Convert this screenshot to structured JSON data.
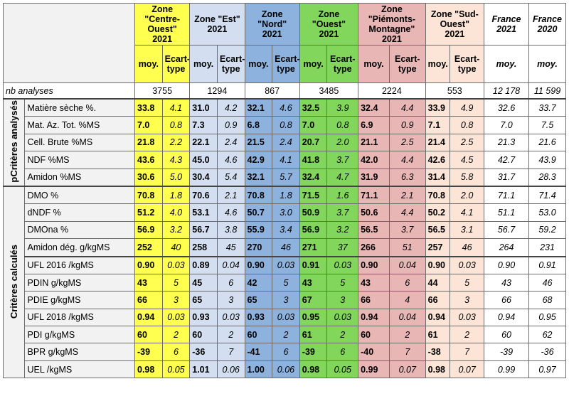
{
  "header": {
    "zones": [
      {
        "label": "Zone \"Centre-Ouest\" 2021",
        "lines": [
          "Zone",
          "\"Centre-",
          "Ouest\"",
          "2021"
        ]
      },
      {
        "label": "Zone \"Est\" 2021",
        "lines": [
          "Zone \"Est\"",
          "2021"
        ]
      },
      {
        "label": "Zone \"Nord\" 2021",
        "lines": [
          "Zone",
          "\"Nord\"",
          "2021"
        ]
      },
      {
        "label": "Zone \"Ouest\" 2021",
        "lines": [
          "Zone",
          "\"Ouest\"",
          "2021"
        ]
      },
      {
        "label": "Zone \"Piémonts-Montagne\" 2021",
        "lines": [
          "Zone",
          "\"Piémonts-",
          "Montagne\"",
          "2021"
        ]
      },
      {
        "label": "Zone \"Sud-Ouest\" 2021",
        "lines": [
          "Zone \"Sud-",
          "Ouest\"",
          "2021"
        ]
      }
    ],
    "france": [
      {
        "lines": [
          "France",
          "2021"
        ]
      },
      {
        "lines": [
          "France",
          "2020"
        ]
      }
    ],
    "moy_label": "moy.",
    "ecart_lines": [
      "Ecart-",
      "type"
    ],
    "france_moy_label": "moy."
  },
  "nb_analyses": {
    "label": "nb analyses",
    "values": [
      "3755",
      "1294",
      "867",
      "3485",
      "2224",
      "553"
    ],
    "france": [
      "12 178",
      "11 599"
    ]
  },
  "groups": [
    {
      "label": "pCritères analysés",
      "rows": [
        {
          "label": "Matière sèche %.",
          "values": [
            [
              "33.8",
              "4.1"
            ],
            [
              "31.0",
              "4.2"
            ],
            [
              "32.1",
              "4.6"
            ],
            [
              "32.5",
              "3.9"
            ],
            [
              "32.4",
              "4.4"
            ],
            [
              "33.9",
              "4.9"
            ]
          ],
          "france": [
            "32.6",
            "33.7"
          ]
        },
        {
          "label": "Mat. Az. Tot. %MS",
          "values": [
            [
              "7.0",
              "0.8"
            ],
            [
              "7.3",
              "0.9"
            ],
            [
              "6.8",
              "0.8"
            ],
            [
              "7.0",
              "0.8"
            ],
            [
              "6.9",
              "0.9"
            ],
            [
              "7.1",
              "0.8"
            ]
          ],
          "france": [
            "7.0",
            "7.5"
          ]
        },
        {
          "label": "Cell. Brute %MS",
          "values": [
            [
              "21.8",
              "2.2"
            ],
            [
              "22.1",
              "2.4"
            ],
            [
              "21.5",
              "2.4"
            ],
            [
              "20.7",
              "2.0"
            ],
            [
              "21.1",
              "2.5"
            ],
            [
              "21.4",
              "2.5"
            ]
          ],
          "france": [
            "21.3",
            "21.6"
          ]
        },
        {
          "label": "NDF %MS",
          "values": [
            [
              "43.6",
              "4.3"
            ],
            [
              "45.0",
              "4.6"
            ],
            [
              "42.9",
              "4.1"
            ],
            [
              "41.8",
              "3.7"
            ],
            [
              "42.0",
              "4.4"
            ],
            [
              "42.6",
              "4.5"
            ]
          ],
          "france": [
            "42.7",
            "43.9"
          ]
        },
        {
          "label": "Amidon %MS",
          "values": [
            [
              "30.6",
              "5.0"
            ],
            [
              "30.4",
              "5.4"
            ],
            [
              "32.1",
              "5.7"
            ],
            [
              "32.4",
              "4.7"
            ],
            [
              "31.9",
              "6.3"
            ],
            [
              "31.4",
              "5.8"
            ]
          ],
          "france": [
            "31.7",
            "28.3"
          ]
        }
      ]
    },
    {
      "label": "Critères calculés",
      "rows": [
        {
          "label": "DMO %",
          "values": [
            [
              "70.8",
              "1.8"
            ],
            [
              "70.6",
              "2.1"
            ],
            [
              "70.8",
              "1.8"
            ],
            [
              "71.5",
              "1.6"
            ],
            [
              "71.1",
              "2.1"
            ],
            [
              "70.8",
              "2.0"
            ]
          ],
          "france": [
            "71.1",
            "71.4"
          ]
        },
        {
          "label": "dNDF %",
          "values": [
            [
              "51.2",
              "4.0"
            ],
            [
              "53.1",
              "4.6"
            ],
            [
              "50.7",
              "3.0"
            ],
            [
              "50.9",
              "3.7"
            ],
            [
              "50.6",
              "4.4"
            ],
            [
              "50.2",
              "4.1"
            ]
          ],
          "france": [
            "51.1",
            "53.0"
          ]
        },
        {
          "label": "DMOna %",
          "values": [
            [
              "56.9",
              "3.2"
            ],
            [
              "56.7",
              "3.8"
            ],
            [
              "55.9",
              "3.4"
            ],
            [
              "56.9",
              "3.2"
            ],
            [
              "56.5",
              "3.7"
            ],
            [
              "56.5",
              "3.1"
            ]
          ],
          "france": [
            "56.7",
            "59.2"
          ]
        },
        {
          "label": "Amidon dég. g/kgMS",
          "values": [
            [
              "252",
              "40"
            ],
            [
              "258",
              "45"
            ],
            [
              "270",
              "46"
            ],
            [
              "271",
              "37"
            ],
            [
              "266",
              "51"
            ],
            [
              "257",
              "46"
            ]
          ],
          "france": [
            "264",
            "231"
          ]
        },
        {
          "label": "UFL 2016 /kgMS",
          "values": [
            [
              "0.90",
              "0.03"
            ],
            [
              "0.89",
              "0.04"
            ],
            [
              "0.90",
              "0.03"
            ],
            [
              "0.91",
              "0.03"
            ],
            [
              "0.90",
              "0.04"
            ],
            [
              "0.90",
              "0.03"
            ]
          ],
          "france": [
            "0.90",
            "0.91"
          ],
          "sep": true
        },
        {
          "label": "PDIN g/kgMS",
          "values": [
            [
              "43",
              "5"
            ],
            [
              "45",
              "6"
            ],
            [
              "42",
              "5"
            ],
            [
              "43",
              "5"
            ],
            [
              "43",
              "6"
            ],
            [
              "44",
              "5"
            ]
          ],
          "france": [
            "43",
            "46"
          ]
        },
        {
          "label": "PDIE g/kgMS",
          "values": [
            [
              "66",
              "3"
            ],
            [
              "65",
              "3"
            ],
            [
              "65",
              "3"
            ],
            [
              "67",
              "3"
            ],
            [
              "66",
              "4"
            ],
            [
              "66",
              "3"
            ]
          ],
          "france": [
            "66",
            "68"
          ]
        },
        {
          "label": "UFL 2018 /kgMS",
          "values": [
            [
              "0.94",
              "0.03"
            ],
            [
              "0.93",
              "0.03"
            ],
            [
              "0.93",
              "0.03"
            ],
            [
              "0.95",
              "0.03"
            ],
            [
              "0.94",
              "0.04"
            ],
            [
              "0.94",
              "0.03"
            ]
          ],
          "france": [
            "0.94",
            "0.95"
          ]
        },
        {
          "label": "PDI g/kgMS",
          "values": [
            [
              "60",
              "2"
            ],
            [
              "60",
              "2"
            ],
            [
              "60",
              "2"
            ],
            [
              "61",
              "2"
            ],
            [
              "60",
              "2"
            ],
            [
              "61",
              "2"
            ]
          ],
          "france": [
            "60",
            "62"
          ]
        },
        {
          "label": "BPR g/kgMS",
          "values": [
            [
              "-39",
              "6"
            ],
            [
              "-36",
              "7"
            ],
            [
              "-41",
              "6"
            ],
            [
              "-39",
              "6"
            ],
            [
              "-40",
              "7"
            ],
            [
              "-38",
              "7"
            ]
          ],
          "france": [
            "-39",
            "-36"
          ]
        },
        {
          "label": "UEL /kgMS",
          "values": [
            [
              "0.98",
              "0.05"
            ],
            [
              "1.01",
              "0.06"
            ],
            [
              "1.00",
              "0.06"
            ],
            [
              "0.98",
              "0.05"
            ],
            [
              "0.99",
              "0.07"
            ],
            [
              "0.98",
              "0.07"
            ]
          ],
          "france": [
            "0.99",
            "0.97"
          ]
        }
      ]
    }
  ],
  "colors": {
    "zones": [
      "#ffff4f",
      "#d3dff0",
      "#8eb2de",
      "#82d65c",
      "#e9b6b6",
      "#fce4d6"
    ],
    "france": "#ffffff",
    "label_bg": "#f2f2f2"
  }
}
